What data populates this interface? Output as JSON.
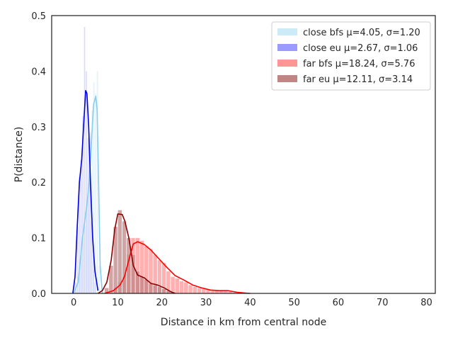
{
  "chart_data": {
    "type": "histogram+kde",
    "title": "",
    "xlabel": "Distance in km from central node",
    "ylabel": "P(distance)",
    "xlim": [
      -5,
      82
    ],
    "ylim": [
      0,
      0.5
    ],
    "xticks": [
      0,
      10,
      20,
      30,
      40,
      50,
      60,
      70,
      80
    ],
    "yticks": [
      0.0,
      0.1,
      0.2,
      0.3,
      0.4,
      0.5
    ],
    "xtick_labels": [
      "0",
      "10",
      "20",
      "30",
      "40",
      "50",
      "60",
      "70",
      "80"
    ],
    "ytick_labels": [
      "0.0",
      "0.1",
      "0.2",
      "0.3",
      "0.4",
      "0.5"
    ],
    "grid": false,
    "legend_position": "top-right",
    "series": [
      {
        "name": "close bfs μ=4.05, σ=1.20",
        "hist_color": "#cdeaf7",
        "kde_color": "#87ceeb",
        "bins": [
          [
            0.6,
            0.005
          ],
          [
            1.0,
            0.03
          ],
          [
            1.4,
            0.06
          ],
          [
            1.8,
            0.08
          ],
          [
            2.2,
            0.1
          ],
          [
            2.6,
            0.12
          ],
          [
            3.0,
            0.16
          ],
          [
            3.4,
            0.2
          ],
          [
            3.8,
            0.29
          ],
          [
            4.2,
            0.33
          ],
          [
            4.6,
            0.38
          ],
          [
            5.0,
            0.36
          ],
          [
            5.4,
            0.4
          ],
          [
            5.8,
            0.05
          ]
        ],
        "kde": [
          [
            0,
            0.0
          ],
          [
            1,
            0.02
          ],
          [
            1.5,
            0.06
          ],
          [
            2,
            0.1
          ],
          [
            2.5,
            0.13
          ],
          [
            3,
            0.16
          ],
          [
            3.5,
            0.2
          ],
          [
            4,
            0.27
          ],
          [
            4.5,
            0.34
          ],
          [
            5,
            0.355
          ],
          [
            5.3,
            0.33
          ],
          [
            5.6,
            0.22
          ],
          [
            6,
            0.05
          ],
          [
            6.5,
            0.0
          ]
        ]
      },
      {
        "name": "close eu μ=2.67, σ=1.06",
        "hist_color": "#9b9bff",
        "kde_color": "#0000dd",
        "bins": [
          [
            0.5,
            0.02
          ],
          [
            0.9,
            0.12
          ],
          [
            1.3,
            0.21
          ],
          [
            1.7,
            0.24
          ],
          [
            2.1,
            0.32
          ],
          [
            2.5,
            0.48
          ],
          [
            2.9,
            0.4
          ],
          [
            3.3,
            0.28
          ],
          [
            3.7,
            0.22
          ],
          [
            4.1,
            0.13
          ],
          [
            4.5,
            0.07
          ],
          [
            4.9,
            0.02
          ]
        ],
        "kde": [
          [
            -0.2,
            0.0
          ],
          [
            0.3,
            0.03
          ],
          [
            0.8,
            0.12
          ],
          [
            1.3,
            0.2
          ],
          [
            1.8,
            0.24
          ],
          [
            2.3,
            0.31
          ],
          [
            2.7,
            0.365
          ],
          [
            3.0,
            0.36
          ],
          [
            3.4,
            0.3
          ],
          [
            3.8,
            0.2
          ],
          [
            4.3,
            0.1
          ],
          [
            4.8,
            0.04
          ],
          [
            5.5,
            0.005
          ]
        ]
      },
      {
        "name": "far bfs μ=18.24, σ=5.76",
        "hist_color": "#ff9696",
        "kde_color": "#ff0000",
        "bins": [
          [
            9.5,
            0.01
          ],
          [
            10.5,
            0.02
          ],
          [
            11.5,
            0.03
          ],
          [
            12.5,
            0.07
          ],
          [
            13.5,
            0.1
          ],
          [
            14.5,
            0.1
          ],
          [
            15.5,
            0.095
          ],
          [
            16.5,
            0.085
          ],
          [
            17.5,
            0.08
          ],
          [
            18.5,
            0.07
          ],
          [
            19.5,
            0.06
          ],
          [
            20.5,
            0.055
          ],
          [
            21.5,
            0.04
          ],
          [
            22.5,
            0.03
          ],
          [
            23.5,
            0.027
          ],
          [
            24.5,
            0.022
          ],
          [
            25.5,
            0.02
          ],
          [
            26.5,
            0.015
          ],
          [
            27.5,
            0.012
          ],
          [
            28.5,
            0.01
          ],
          [
            29.5,
            0.008
          ],
          [
            30.5,
            0.006
          ],
          [
            31.5,
            0.005
          ],
          [
            32.5,
            0.005
          ],
          [
            33.5,
            0.005
          ],
          [
            34.5,
            0.004
          ],
          [
            35.5,
            0.003
          ],
          [
            36.5,
            0.002
          ],
          [
            37.5,
            0.002
          ],
          [
            38.5,
            0.001
          ]
        ],
        "kde": [
          [
            7,
            0.0
          ],
          [
            9,
            0.005
          ],
          [
            10.5,
            0.015
          ],
          [
            11.5,
            0.03
          ],
          [
            12.5,
            0.06
          ],
          [
            13.5,
            0.089
          ],
          [
            14.5,
            0.093
          ],
          [
            16,
            0.088
          ],
          [
            17.5,
            0.078
          ],
          [
            19,
            0.065
          ],
          [
            21,
            0.048
          ],
          [
            23,
            0.032
          ],
          [
            25,
            0.024
          ],
          [
            27,
            0.015
          ],
          [
            29,
            0.01
          ],
          [
            31,
            0.006
          ],
          [
            33,
            0.005
          ],
          [
            35,
            0.005
          ],
          [
            37,
            0.002
          ],
          [
            39,
            0.0005
          ],
          [
            40,
            0.0
          ]
        ]
      },
      {
        "name": "far eu μ=12.11, σ=3.14",
        "hist_color": "#c38484",
        "kde_color": "#8b0000",
        "bins": [
          [
            7.5,
            0.01
          ],
          [
            8.5,
            0.05
          ],
          [
            9.5,
            0.12
          ],
          [
            10.5,
            0.15
          ],
          [
            11.5,
            0.13
          ],
          [
            12.5,
            0.1
          ],
          [
            13.5,
            0.07
          ],
          [
            14.5,
            0.04
          ],
          [
            15.5,
            0.03
          ],
          [
            16.5,
            0.025
          ],
          [
            17.5,
            0.018
          ],
          [
            18.5,
            0.015
          ],
          [
            19.5,
            0.012
          ],
          [
            20.5,
            0.008
          ],
          [
            21.5,
            0.005
          ],
          [
            22.5,
            0.003
          ]
        ],
        "kde": [
          [
            5.5,
            0.0
          ],
          [
            6.5,
            0.005
          ],
          [
            7.5,
            0.02
          ],
          [
            8.5,
            0.06
          ],
          [
            9.3,
            0.115
          ],
          [
            10,
            0.143
          ],
          [
            11,
            0.142
          ],
          [
            11.6,
            0.13
          ],
          [
            12.5,
            0.1
          ],
          [
            13.5,
            0.05
          ],
          [
            14.5,
            0.033
          ],
          [
            16,
            0.028
          ],
          [
            17.5,
            0.018
          ],
          [
            19,
            0.015
          ],
          [
            20.5,
            0.01
          ],
          [
            22,
            0.003
          ],
          [
            23,
            0.0
          ]
        ]
      }
    ]
  }
}
